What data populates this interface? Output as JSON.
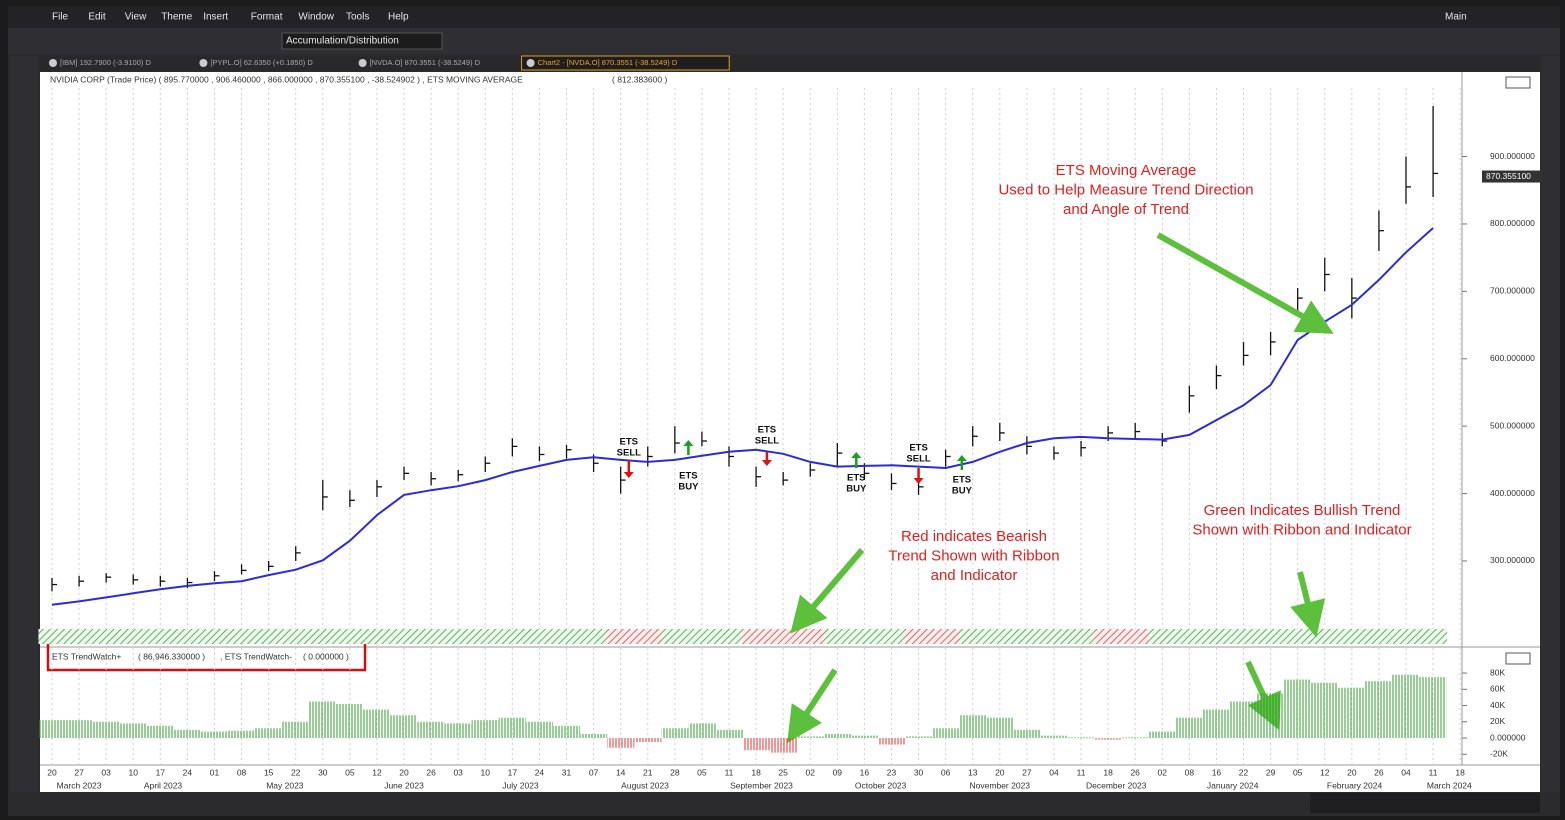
{
  "menu": [
    "File",
    "Edit",
    "View",
    "Theme",
    "Insert",
    "Format",
    "Window",
    "Tools",
    "Help"
  ],
  "workspace": "Main",
  "toolbar_dropdown": "Accumulation/Distribution",
  "tabs": [
    "[IBM] 192.7900 (-3.9100) D",
    "[PYPL.O] 62.6350 (+0.1850) D",
    "[NVDA.O] 870.3551 (-38.5249) D",
    "Chart2 - [NVDA.O] 870.3551 (-38.5249) D"
  ],
  "chart_data": [
    {
      "type": "ohlc",
      "header": "NVIDIA CORP (Trade Price) ( 895.770000 , 906.460000 , 866.000000 , 870.355100 , -38.524902 ) , ETS MOVING AVERAGE",
      "ma_header_value": "( 812.383600 )",
      "categories": [
        "20",
        "27",
        "03",
        "10",
        "17",
        "24",
        "01",
        "08",
        "15",
        "22",
        "30",
        "05",
        "12",
        "20",
        "26",
        "03",
        "10",
        "17",
        "24",
        "31",
        "07",
        "14",
        "21",
        "28",
        "05",
        "11",
        "18",
        "25",
        "02",
        "09",
        "16",
        "23",
        "30",
        "06",
        "13",
        "20",
        "27",
        "04",
        "11",
        "18",
        "26",
        "02",
        "08",
        "16",
        "22",
        "29",
        "05",
        "12",
        "20",
        "26",
        "04",
        "11",
        "18"
      ],
      "months": [
        "March 2023",
        "April 2023",
        "May 2023",
        "June 2023",
        "July 2023",
        "August 2023",
        "September 2023",
        "October 2023",
        "November 2023",
        "December 2023",
        "January 2024",
        "February 2024",
        "March 2024"
      ],
      "high": [
        275,
        278,
        282,
        280,
        278,
        275,
        285,
        295,
        300,
        322,
        420,
        405,
        420,
        440,
        432,
        435,
        455,
        482,
        470,
        472,
        458,
        440,
        470,
        500,
        492,
        470,
        440,
        432,
        445,
        475,
        445,
        430,
        425,
        465,
        500,
        505,
        485,
        470,
        478,
        500,
        505,
        490,
        560,
        590,
        625,
        640,
        705,
        750,
        720,
        820,
        900,
        975,
        null
      ],
      "low": [
        255,
        262,
        268,
        265,
        262,
        260,
        270,
        280,
        285,
        300,
        375,
        380,
        395,
        420,
        412,
        418,
        432,
        455,
        448,
        452,
        432,
        400,
        440,
        460,
        470,
        440,
        410,
        412,
        425,
        440,
        420,
        405,
        398,
        440,
        470,
        478,
        458,
        450,
        455,
        478,
        480,
        470,
        520,
        555,
        590,
        605,
        665,
        700,
        660,
        760,
        830,
        840,
        null
      ],
      "close": [
        265,
        270,
        276,
        272,
        270,
        268,
        278,
        286,
        292,
        312,
        395,
        390,
        410,
        430,
        422,
        428,
        445,
        470,
        458,
        465,
        445,
        420,
        455,
        475,
        478,
        455,
        425,
        420,
        435,
        460,
        430,
        415,
        410,
        455,
        485,
        490,
        470,
        460,
        468,
        490,
        492,
        478,
        545,
        575,
        605,
        625,
        690,
        725,
        690,
        790,
        855,
        875,
        null
      ],
      "bar_color": "#111111",
      "series": [
        {
          "name": "ETS MOVING AVERAGE",
          "color": "#2b2bd8",
          "values": [
            235,
            240,
            246,
            252,
            258,
            263,
            267,
            270,
            279,
            287,
            301,
            330,
            368,
            398,
            405,
            411,
            420,
            432,
            441,
            450,
            454,
            450,
            447,
            450,
            456,
            462,
            465,
            459,
            447,
            440,
            441,
            442,
            440,
            438,
            447,
            462,
            475,
            482,
            484,
            482,
            481,
            480,
            487,
            509,
            531,
            561,
            628,
            655,
            680,
            717,
            758,
            794,
            null
          ]
        }
      ],
      "ylim": [
        205,
        1021
      ],
      "yticks": [
        {
          "value": 300,
          "label": "300.000000"
        },
        {
          "value": 400,
          "label": "400.000000"
        },
        {
          "value": 500,
          "label": "500.000000"
        },
        {
          "value": 600,
          "label": "600.000000"
        },
        {
          "value": 700,
          "label": "700.000000"
        },
        {
          "value": 800,
          "label": "800.000000"
        },
        {
          "value": 900,
          "label": "900.000000"
        }
      ],
      "last_price": {
        "value": 870.3551,
        "label": "870.355100"
      },
      "ribbon_colors": [
        "green",
        "green",
        "green",
        "green",
        "green",
        "green",
        "green",
        "green",
        "green",
        "green",
        "green",
        "green",
        "green",
        "green",
        "green",
        "green",
        "green",
        "green",
        "green",
        "green",
        "green",
        "red",
        "red",
        "green",
        "green",
        "green",
        "red",
        "red",
        "red",
        "green",
        "green",
        "green",
        "red",
        "red",
        "green",
        "green",
        "green",
        "green",
        "green",
        "red",
        "red",
        "green",
        "green",
        "green",
        "green",
        "green",
        "green",
        "green",
        "green",
        "green",
        "green",
        "green",
        null
      ],
      "signals": [
        {
          "label": [
            "ETS",
            "SELL"
          ],
          "color": "#e01010"
        },
        {
          "label": [
            "ETS",
            "BUY"
          ],
          "color": "#1aa01a"
        },
        {
          "label": [
            "ETS",
            "SELL"
          ],
          "color": "#e01010"
        },
        {
          "label": [
            "ETS",
            "BUY"
          ],
          "color": "#1aa01a"
        },
        {
          "label": [
            "ETS",
            "SELL"
          ],
          "color": "#e01010"
        },
        {
          "label": [
            "ETS",
            "BUY"
          ],
          "color": "#1aa01a"
        }
      ],
      "annotations": [
        [
          "ETS Moving Average",
          "Used to Help Measure Trend Direction",
          "and Angle of Trend"
        ],
        [
          "Red indicates Bearish",
          "Trend Shown with Ribbon",
          "and Indicator"
        ],
        [
          "Green Indicates Bullish Trend",
          "Shown with Ribbon and Indicator"
        ]
      ]
    },
    {
      "type": "histogram",
      "header": [
        "ETS TrendWatch+",
        "( 86,946.330000 )",
        ", ETS TrendWatch-",
        "( 0.000000 )"
      ],
      "values": [
        22000,
        22000,
        20000,
        18000,
        15000,
        10000,
        8000,
        9000,
        12000,
        20000,
        45000,
        42000,
        35000,
        28000,
        20000,
        18000,
        22000,
        25000,
        20000,
        15000,
        5000,
        -12000,
        -5000,
        12000,
        18000,
        10000,
        -15000,
        -18000,
        2000,
        5000,
        3000,
        -8000,
        2000,
        12000,
        28000,
        25000,
        10000,
        3000,
        1000,
        -2000,
        1000,
        8000,
        25000,
        35000,
        45000,
        55000,
        72000,
        68000,
        62000,
        70000,
        78000,
        75000,
        null
      ],
      "positive_color": "#2e9e2e",
      "negative_color": "#e03030",
      "ylim": [
        -29500,
        101000
      ],
      "yticks": [
        {
          "value": -20000,
          "label": "-20K"
        },
        {
          "value": 0,
          "label": "0.000000"
        },
        {
          "value": 20000,
          "label": "20K"
        },
        {
          "value": 40000,
          "label": "40K"
        },
        {
          "value": 60000,
          "label": "60K"
        },
        {
          "value": 80000,
          "label": "80K"
        }
      ]
    }
  ]
}
